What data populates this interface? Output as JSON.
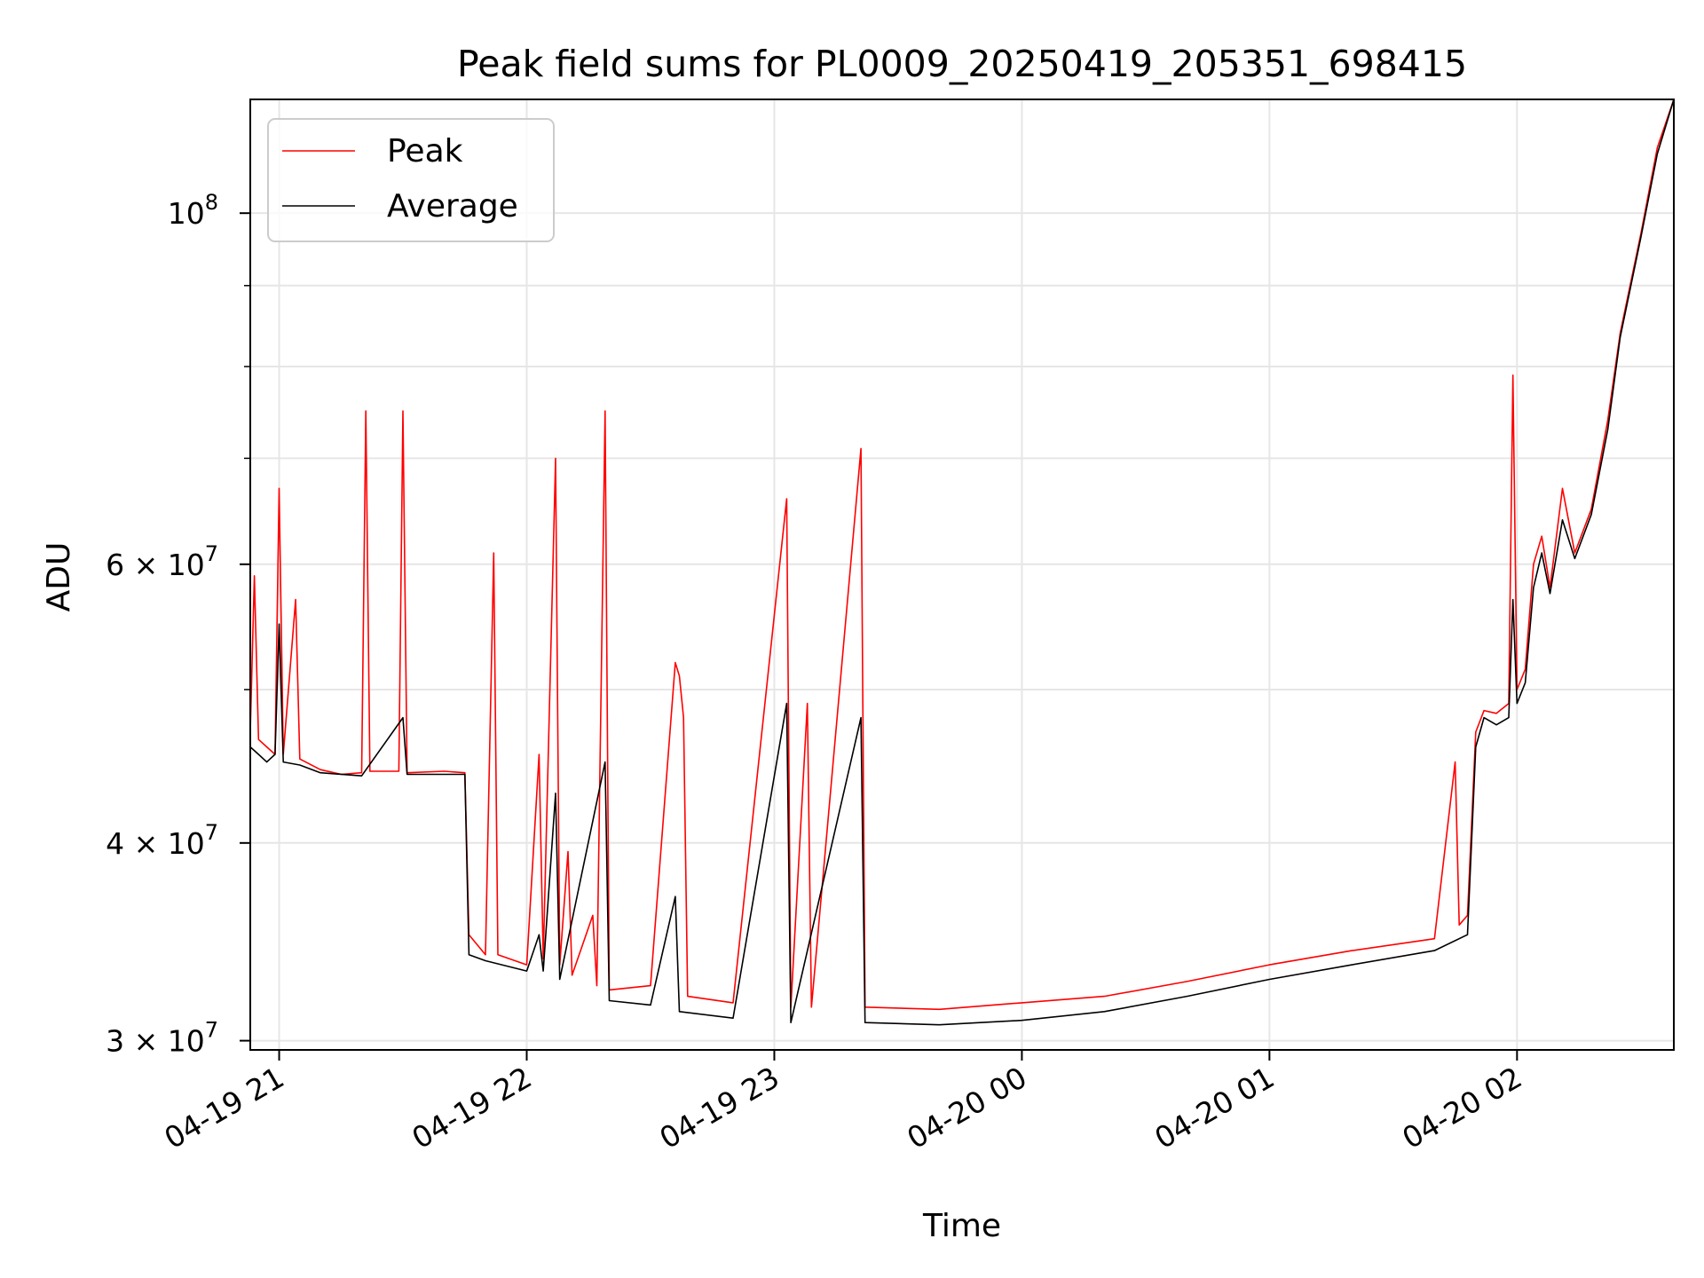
{
  "chart_data": {
    "type": "line",
    "title": "Peak field sums for PL0009_20250419_205351_698415",
    "xlabel": "Time",
    "ylabel": "ADU",
    "yscale": "log",
    "ylim": [
      29600000,
      118000000
    ],
    "xlim": [
      "2025-04-19 20:53",
      "2025-04-20 02:38"
    ],
    "grid": true,
    "legend_position": "upper left",
    "x_ticks": [
      {
        "t": "2025-04-19 21:00",
        "label": "04-19 21"
      },
      {
        "t": "2025-04-19 22:00",
        "label": "04-19 22"
      },
      {
        "t": "2025-04-19 23:00",
        "label": "04-19 23"
      },
      {
        "t": "2025-04-20 00:00",
        "label": "04-20 00"
      },
      {
        "t": "2025-04-20 01:00",
        "label": "04-20 01"
      },
      {
        "t": "2025-04-20 02:00",
        "label": "04-20 02"
      }
    ],
    "y_ticks": [
      {
        "value": 30000000,
        "mantissa": "3",
        "exp": "7"
      },
      {
        "value": 40000000,
        "mantissa": "4",
        "exp": "7"
      },
      {
        "value": 60000000,
        "mantissa": "6",
        "exp": "7"
      },
      {
        "value": 100000000,
        "mantissa": "",
        "exp": "8"
      }
    ],
    "y_minor_ticks": [
      50000000,
      70000000,
      80000000,
      90000000
    ],
    "series": [
      {
        "name": "Peak",
        "color": "#ff0000",
        "values": [
          [
            "2025-04-19 20:53",
            47000000
          ],
          [
            "2025-04-19 20:54",
            59000000
          ],
          [
            "2025-04-19 20:55",
            46500000
          ],
          [
            "2025-04-19 20:57",
            46000000
          ],
          [
            "2025-04-19 20:59",
            45500000
          ],
          [
            "2025-04-19 21:00",
            67000000
          ],
          [
            "2025-04-19 21:01",
            45500000
          ],
          [
            "2025-04-19 21:04",
            57000000
          ],
          [
            "2025-04-19 21:05",
            45200000
          ],
          [
            "2025-04-19 21:10",
            44500000
          ],
          [
            "2025-04-19 21:15",
            44200000
          ],
          [
            "2025-04-19 21:20",
            44300000
          ],
          [
            "2025-04-19 21:21",
            75000000
          ],
          [
            "2025-04-19 21:22",
            44400000
          ],
          [
            "2025-04-19 21:29",
            44400000
          ],
          [
            "2025-04-19 21:30",
            75000000
          ],
          [
            "2025-04-19 21:31",
            44300000
          ],
          [
            "2025-04-19 21:40",
            44400000
          ],
          [
            "2025-04-19 21:45",
            44300000
          ],
          [
            "2025-04-19 21:46",
            35000000
          ],
          [
            "2025-04-19 21:50",
            34000000
          ],
          [
            "2025-04-19 21:52",
            61000000
          ],
          [
            "2025-04-19 21:53",
            34000000
          ],
          [
            "2025-04-19 22:00",
            33500000
          ],
          [
            "2025-04-19 22:03",
            45500000
          ],
          [
            "2025-04-19 22:04",
            33800000
          ],
          [
            "2025-04-19 22:07",
            70000000
          ],
          [
            "2025-04-19 22:08",
            33500000
          ],
          [
            "2025-04-19 22:10",
            39500000
          ],
          [
            "2025-04-19 22:11",
            33000000
          ],
          [
            "2025-04-19 22:16",
            36000000
          ],
          [
            "2025-04-19 22:17",
            32500000
          ],
          [
            "2025-04-19 22:19",
            75000000
          ],
          [
            "2025-04-19 22:20",
            32300000
          ],
          [
            "2025-04-19 22:30",
            32500000
          ],
          [
            "2025-04-19 22:36",
            52000000
          ],
          [
            "2025-04-19 22:37",
            51000000
          ],
          [
            "2025-04-19 22:38",
            48000000
          ],
          [
            "2025-04-19 22:39",
            32000000
          ],
          [
            "2025-04-19 22:50",
            31700000
          ],
          [
            "2025-04-19 23:03",
            66000000
          ],
          [
            "2025-04-19 23:04",
            31500000
          ],
          [
            "2025-04-19 23:08",
            49000000
          ],
          [
            "2025-04-19 23:09",
            31500000
          ],
          [
            "2025-04-19 23:21",
            71000000
          ],
          [
            "2025-04-19 23:22",
            31500000
          ],
          [
            "2025-04-19 23:40",
            31400000
          ],
          [
            "2025-04-20 00:00",
            31700000
          ],
          [
            "2025-04-20 00:20",
            32000000
          ],
          [
            "2025-04-20 00:40",
            32700000
          ],
          [
            "2025-04-20 01:00",
            33500000
          ],
          [
            "2025-04-20 01:20",
            34200000
          ],
          [
            "2025-04-20 01:40",
            34800000
          ],
          [
            "2025-04-20 01:45",
            45000000
          ],
          [
            "2025-04-20 01:46",
            35500000
          ],
          [
            "2025-04-20 01:48",
            36000000
          ],
          [
            "2025-04-20 01:50",
            47000000
          ],
          [
            "2025-04-20 01:52",
            48500000
          ],
          [
            "2025-04-20 01:55",
            48300000
          ],
          [
            "2025-04-20 01:58",
            49000000
          ],
          [
            "2025-04-20 01:59",
            79000000
          ],
          [
            "2025-04-20 02:00",
            50000000
          ],
          [
            "2025-04-20 02:02",
            51500000
          ],
          [
            "2025-04-20 02:04",
            60000000
          ],
          [
            "2025-04-20 02:06",
            62500000
          ],
          [
            "2025-04-20 02:08",
            58000000
          ],
          [
            "2025-04-20 02:11",
            67000000
          ],
          [
            "2025-04-20 02:14",
            61000000
          ],
          [
            "2025-04-20 02:18",
            65000000
          ],
          [
            "2025-04-20 02:22",
            74000000
          ],
          [
            "2025-04-20 02:25",
            84000000
          ],
          [
            "2025-04-20 02:30",
            97000000
          ],
          [
            "2025-04-20 02:34",
            110000000
          ],
          [
            "2025-04-20 02:38",
            118000000
          ]
        ]
      },
      {
        "name": "Average",
        "color": "#000000",
        "values": [
          [
            "2025-04-19 20:53",
            46000000
          ],
          [
            "2025-04-19 20:55",
            45500000
          ],
          [
            "2025-04-19 20:57",
            45000000
          ],
          [
            "2025-04-19 20:59",
            45500000
          ],
          [
            "2025-04-19 21:00",
            55000000
          ],
          [
            "2025-04-19 21:01",
            45000000
          ],
          [
            "2025-04-19 21:05",
            44800000
          ],
          [
            "2025-04-19 21:10",
            44300000
          ],
          [
            "2025-04-19 21:20",
            44100000
          ],
          [
            "2025-04-19 21:30",
            48000000
          ],
          [
            "2025-04-19 21:31",
            44200000
          ],
          [
            "2025-04-19 21:45",
            44200000
          ],
          [
            "2025-04-19 21:46",
            34000000
          ],
          [
            "2025-04-19 21:50",
            33700000
          ],
          [
            "2025-04-19 22:00",
            33200000
          ],
          [
            "2025-04-19 22:03",
            35000000
          ],
          [
            "2025-04-19 22:04",
            33200000
          ],
          [
            "2025-04-19 22:07",
            43000000
          ],
          [
            "2025-04-19 22:08",
            32800000
          ],
          [
            "2025-04-19 22:19",
            45000000
          ],
          [
            "2025-04-19 22:20",
            31800000
          ],
          [
            "2025-04-19 22:30",
            31600000
          ],
          [
            "2025-04-19 22:36",
            37000000
          ],
          [
            "2025-04-19 22:37",
            31300000
          ],
          [
            "2025-04-19 22:50",
            31000000
          ],
          [
            "2025-04-19 23:03",
            49000000
          ],
          [
            "2025-04-19 23:04",
            30800000
          ],
          [
            "2025-04-19 23:21",
            48000000
          ],
          [
            "2025-04-19 23:22",
            30800000
          ],
          [
            "2025-04-19 23:40",
            30700000
          ],
          [
            "2025-04-20 00:00",
            30900000
          ],
          [
            "2025-04-20 00:20",
            31300000
          ],
          [
            "2025-04-20 00:40",
            32000000
          ],
          [
            "2025-04-20 01:00",
            32800000
          ],
          [
            "2025-04-20 01:20",
            33500000
          ],
          [
            "2025-04-20 01:40",
            34200000
          ],
          [
            "2025-04-20 01:48",
            35000000
          ],
          [
            "2025-04-20 01:50",
            46000000
          ],
          [
            "2025-04-20 01:52",
            48000000
          ],
          [
            "2025-04-20 01:55",
            47500000
          ],
          [
            "2025-04-20 01:58",
            48000000
          ],
          [
            "2025-04-20 01:59",
            57000000
          ],
          [
            "2025-04-20 02:00",
            49000000
          ],
          [
            "2025-04-20 02:02",
            50500000
          ],
          [
            "2025-04-20 02:04",
            58000000
          ],
          [
            "2025-04-20 02:06",
            61000000
          ],
          [
            "2025-04-20 02:08",
            57500000
          ],
          [
            "2025-04-20 02:11",
            64000000
          ],
          [
            "2025-04-20 02:14",
            60500000
          ],
          [
            "2025-04-20 02:18",
            64500000
          ],
          [
            "2025-04-20 02:22",
            73000000
          ],
          [
            "2025-04-20 02:25",
            83500000
          ],
          [
            "2025-04-20 02:30",
            96500000
          ],
          [
            "2025-04-20 02:34",
            109000000
          ],
          [
            "2025-04-20 02:38",
            118000000
          ]
        ]
      }
    ]
  }
}
